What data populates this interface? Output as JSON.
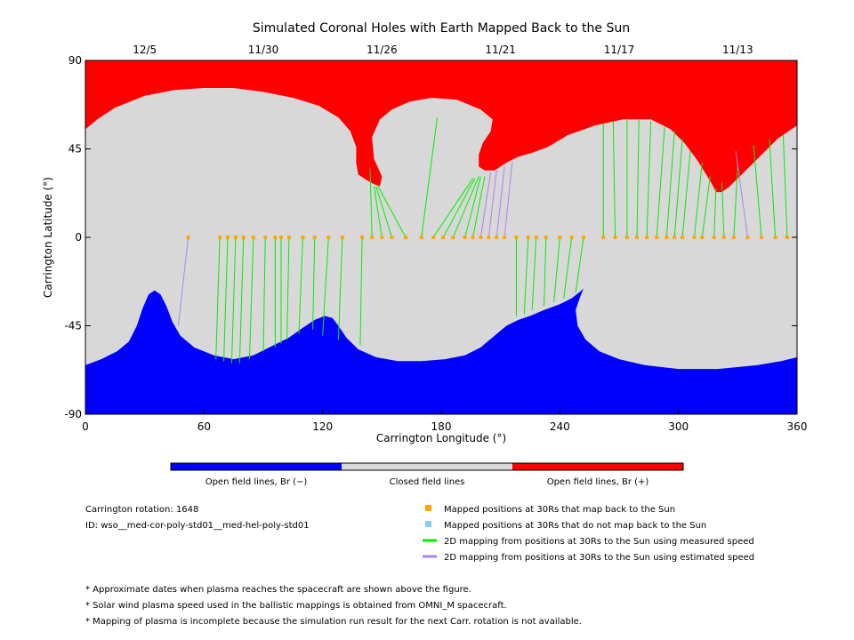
{
  "chart_data": {
    "type": "scatter",
    "title": "Simulated Coronal Holes with Earth Mapped Back to the Sun",
    "xlabel": "Carrington Longitude (°)",
    "ylabel": "Carrington Latitude (°)",
    "xlim": [
      0,
      360
    ],
    "ylim": [
      -90,
      90
    ],
    "x_ticks": [
      0,
      60,
      120,
      180,
      240,
      300,
      360
    ],
    "y_ticks": [
      -90,
      -45,
      0,
      45,
      90
    ],
    "date_ticks": [
      {
        "label": "12/5",
        "lon": 30
      },
      {
        "label": "11/30",
        "lon": 90
      },
      {
        "label": "11/26",
        "lon": 150
      },
      {
        "label": "11/21",
        "lon": 210
      },
      {
        "label": "11/17",
        "lon": 270
      },
      {
        "label": "11/13",
        "lon": 330
      }
    ],
    "colors": {
      "positive": "#ff0000",
      "closed": "#d8d8d8",
      "negative": "#0000ff",
      "measured": "#00ee00",
      "estimated": "#b080f0",
      "mapped_point": "#ffa500",
      "unmapped_point": "#87cefa"
    },
    "regions": {
      "positive_boundary": [
        [
          0,
          55
        ],
        [
          6,
          60
        ],
        [
          15,
          66
        ],
        [
          30,
          72
        ],
        [
          45,
          75
        ],
        [
          60,
          76
        ],
        [
          75,
          76
        ],
        [
          90,
          74
        ],
        [
          105,
          71
        ],
        [
          118,
          67
        ],
        [
          128,
          61
        ],
        [
          134,
          54
        ],
        [
          137,
          46
        ],
        [
          137,
          38
        ],
        [
          138,
          32
        ],
        [
          141,
          30
        ],
        [
          146,
          27
        ],
        [
          149,
          26
        ],
        [
          150,
          31
        ],
        [
          146,
          40
        ],
        [
          145,
          51
        ],
        [
          149,
          60
        ],
        [
          155,
          65
        ],
        [
          164,
          69
        ],
        [
          175,
          71
        ],
        [
          188,
          70
        ],
        [
          200,
          65
        ],
        [
          206,
          60
        ],
        [
          205,
          54
        ],
        [
          201,
          48
        ],
        [
          199,
          42
        ],
        [
          199,
          36
        ],
        [
          202,
          34
        ],
        [
          207,
          34
        ],
        [
          213,
          38
        ],
        [
          219,
          41
        ],
        [
          226,
          43
        ],
        [
          234,
          46
        ],
        [
          244,
          52
        ],
        [
          258,
          57
        ],
        [
          272,
          60
        ],
        [
          286,
          60
        ],
        [
          296,
          55
        ],
        [
          303,
          48
        ],
        [
          309,
          40
        ],
        [
          314,
          32
        ],
        [
          317,
          27
        ],
        [
          319,
          23
        ],
        [
          322,
          23
        ],
        [
          326,
          26
        ],
        [
          332,
          32
        ],
        [
          340,
          40
        ],
        [
          350,
          50
        ],
        [
          360,
          57
        ]
      ],
      "negative_boundary": [
        [
          0,
          -65
        ],
        [
          8,
          -62
        ],
        [
          16,
          -58
        ],
        [
          22,
          -53
        ],
        [
          26,
          -45
        ],
        [
          29,
          -36
        ],
        [
          32,
          -29
        ],
        [
          35,
          -27
        ],
        [
          38,
          -29
        ],
        [
          41,
          -35
        ],
        [
          44,
          -43
        ],
        [
          48,
          -50
        ],
        [
          55,
          -56
        ],
        [
          65,
          -60
        ],
        [
          75,
          -62
        ],
        [
          85,
          -60
        ],
        [
          95,
          -55
        ],
        [
          103,
          -51
        ],
        [
          110,
          -46
        ],
        [
          116,
          -42
        ],
        [
          121,
          -40
        ],
        [
          125,
          -41
        ],
        [
          128,
          -45
        ],
        [
          132,
          -51
        ],
        [
          138,
          -57
        ],
        [
          147,
          -61
        ],
        [
          158,
          -63
        ],
        [
          170,
          -63
        ],
        [
          182,
          -62
        ],
        [
          192,
          -60
        ],
        [
          200,
          -56
        ],
        [
          207,
          -50
        ],
        [
          213,
          -45
        ],
        [
          219,
          -42
        ],
        [
          225,
          -40
        ],
        [
          232,
          -37
        ],
        [
          240,
          -34
        ],
        [
          246,
          -31
        ],
        [
          251,
          -27
        ],
        [
          252,
          -26
        ],
        [
          250,
          -31
        ],
        [
          248,
          -37
        ],
        [
          249,
          -45
        ],
        [
          253,
          -52
        ],
        [
          260,
          -58
        ],
        [
          270,
          -62
        ],
        [
          283,
          -65
        ],
        [
          300,
          -67
        ],
        [
          320,
          -67
        ],
        [
          340,
          -65
        ],
        [
          352,
          -63
        ],
        [
          360,
          -61
        ]
      ]
    },
    "speed_source": "measured speed",
    "trajectories": [
      {
        "lon": 52,
        "lat": 0,
        "sun_lon": 47,
        "sun_lat": -45,
        "mapped": true,
        "speed": "estimated"
      },
      {
        "lon": 68,
        "lat": 0,
        "sun_lon": 66,
        "sun_lat": -62,
        "mapped": true,
        "speed": "measured"
      },
      {
        "lon": 72,
        "lat": 0,
        "sun_lon": 70,
        "sun_lat": -63,
        "mapped": true,
        "speed": "measured"
      },
      {
        "lon": 76,
        "lat": 0,
        "sun_lon": 74,
        "sun_lat": -64,
        "mapped": true,
        "speed": "measured"
      },
      {
        "lon": 80,
        "lat": 0,
        "sun_lon": 78,
        "sun_lat": -64,
        "mapped": true,
        "speed": "measured"
      },
      {
        "lon": 85,
        "lat": 0,
        "sun_lon": 83,
        "sun_lat": -62,
        "mapped": true,
        "speed": "measured"
      },
      {
        "lon": 91,
        "lat": 0,
        "sun_lon": 90,
        "sun_lat": -58,
        "mapped": true,
        "speed": "measured"
      },
      {
        "lon": 96,
        "lat": 0,
        "sun_lon": 96,
        "sun_lat": -56,
        "mapped": true,
        "speed": "measured"
      },
      {
        "lon": 99,
        "lat": 0,
        "sun_lon": 99,
        "sun_lat": -54,
        "mapped": true,
        "speed": "measured"
      },
      {
        "lon": 103,
        "lat": 0,
        "sun_lon": 102,
        "sun_lat": -52,
        "mapped": true,
        "speed": "measured"
      },
      {
        "lon": 110,
        "lat": 0,
        "sun_lon": 108,
        "sun_lat": -49,
        "mapped": true,
        "speed": "measured"
      },
      {
        "lon": 116,
        "lat": 0,
        "sun_lon": 115,
        "sun_lat": -47,
        "mapped": true,
        "speed": "measured"
      },
      {
        "lon": 123,
        "lat": 0,
        "sun_lon": 120,
        "sun_lat": -50,
        "mapped": true,
        "speed": "measured"
      },
      {
        "lon": 130,
        "lat": 0,
        "sun_lon": 128,
        "sun_lat": -52,
        "mapped": true,
        "speed": "measured"
      },
      {
        "lon": 140,
        "lat": 0,
        "sun_lon": 139,
        "sun_lat": -55,
        "mapped": true,
        "speed": "measured"
      },
      {
        "lon": 145,
        "lat": 0,
        "sun_lon": 144,
        "sun_lat": 35,
        "mapped": true,
        "speed": "measured"
      },
      {
        "lon": 150,
        "lat": 0,
        "sun_lon": 146,
        "sun_lat": 26,
        "mapped": true,
        "speed": "measured"
      },
      {
        "lon": 155,
        "lat": 0,
        "sun_lon": 147,
        "sun_lat": 26,
        "mapped": true,
        "speed": "measured"
      },
      {
        "lon": 162,
        "lat": 0,
        "sun_lon": 148,
        "sun_lat": 26,
        "mapped": true,
        "speed": "measured"
      },
      {
        "lon": 170,
        "lat": 0,
        "sun_lon": 178,
        "sun_lat": 61,
        "mapped": true,
        "speed": "measured"
      },
      {
        "lon": 176,
        "lat": 0,
        "sun_lon": 196,
        "sun_lat": 30,
        "mapped": true,
        "speed": "measured"
      },
      {
        "lon": 181,
        "lat": 0,
        "sun_lon": 197,
        "sun_lat": 30,
        "mapped": true,
        "speed": "measured"
      },
      {
        "lon": 186,
        "lat": 0,
        "sun_lon": 199,
        "sun_lat": 31,
        "mapped": true,
        "speed": "measured"
      },
      {
        "lon": 192,
        "lat": 0,
        "sun_lon": 200,
        "sun_lat": 31,
        "mapped": true,
        "speed": "measured"
      },
      {
        "lon": 196,
        "lat": 0,
        "sun_lon": 202,
        "sun_lat": 31,
        "mapped": true,
        "speed": "measured"
      },
      {
        "lon": 200,
        "lat": 0,
        "sun_lon": 205,
        "sun_lat": 33,
        "mapped": true,
        "speed": "estimated"
      },
      {
        "lon": 204,
        "lat": 0,
        "sun_lon": 208,
        "sun_lat": 34,
        "mapped": true,
        "speed": "estimated"
      },
      {
        "lon": 208,
        "lat": 0,
        "sun_lon": 212,
        "sun_lat": 36,
        "mapped": true,
        "speed": "estimated"
      },
      {
        "lon": 212,
        "lat": 0,
        "sun_lon": 216,
        "sun_lat": 39,
        "mapped": true,
        "speed": "estimated"
      },
      {
        "lon": 218,
        "lat": 0,
        "sun_lon": 218,
        "sun_lat": -40,
        "mapped": true,
        "speed": "measured"
      },
      {
        "lon": 224,
        "lat": 0,
        "sun_lon": 222,
        "sun_lat": -39,
        "mapped": true,
        "speed": "measured"
      },
      {
        "lon": 228,
        "lat": 0,
        "sun_lon": 226,
        "sun_lat": -37,
        "mapped": true,
        "speed": "measured"
      },
      {
        "lon": 233,
        "lat": 0,
        "sun_lon": 232,
        "sun_lat": -35,
        "mapped": true,
        "speed": "measured"
      },
      {
        "lon": 240,
        "lat": 0,
        "sun_lon": 237,
        "sun_lat": -33,
        "mapped": true,
        "speed": "measured"
      },
      {
        "lon": 246,
        "lat": 0,
        "sun_lon": 242,
        "sun_lat": -31,
        "mapped": true,
        "speed": "measured"
      },
      {
        "lon": 252,
        "lat": 0,
        "sun_lon": 248,
        "sun_lat": -28,
        "mapped": true,
        "speed": "measured"
      },
      {
        "lon": 262,
        "lat": 0,
        "sun_lon": 262,
        "sun_lat": 58,
        "mapped": true,
        "speed": "measured"
      },
      {
        "lon": 268,
        "lat": 0,
        "sun_lon": 267,
        "sun_lat": 59,
        "mapped": true,
        "speed": "measured"
      },
      {
        "lon": 274,
        "lat": 0,
        "sun_lon": 274,
        "sun_lat": 60,
        "mapped": true,
        "speed": "measured"
      },
      {
        "lon": 279,
        "lat": 0,
        "sun_lon": 280,
        "sun_lat": 60,
        "mapped": true,
        "speed": "measured"
      },
      {
        "lon": 284,
        "lat": 0,
        "sun_lon": 286,
        "sun_lat": 59,
        "mapped": true,
        "speed": "measured"
      },
      {
        "lon": 289,
        "lat": 0,
        "sun_lon": 293,
        "sun_lat": 56,
        "mapped": true,
        "speed": "measured"
      },
      {
        "lon": 294,
        "lat": 0,
        "sun_lon": 298,
        "sun_lat": 54,
        "mapped": true,
        "speed": "measured"
      },
      {
        "lon": 298,
        "lat": 0,
        "sun_lon": 302,
        "sun_lat": 50,
        "mapped": true,
        "speed": "measured"
      },
      {
        "lon": 302,
        "lat": 0,
        "sun_lon": 306,
        "sun_lat": 44,
        "mapped": true,
        "speed": "measured"
      },
      {
        "lon": 308,
        "lat": 0,
        "sun_lon": 312,
        "sun_lat": 38,
        "mapped": true,
        "speed": "measured"
      },
      {
        "lon": 312,
        "lat": 0,
        "sun_lon": 316,
        "sun_lat": 31,
        "mapped": true,
        "speed": "measured"
      },
      {
        "lon": 318,
        "lat": 0,
        "sun_lon": 319,
        "sun_lat": 25,
        "mapped": true,
        "speed": "measured"
      },
      {
        "lon": 323,
        "lat": 0,
        "sun_lon": 322,
        "sun_lat": 28,
        "mapped": true,
        "speed": "measured"
      },
      {
        "lon": 328,
        "lat": 0,
        "sun_lon": 330,
        "sun_lat": 37,
        "mapped": true,
        "speed": "measured"
      },
      {
        "lon": 335,
        "lat": 0,
        "sun_lon": 329,
        "sun_lat": 44,
        "mapped": true,
        "speed": "estimated"
      },
      {
        "lon": 342,
        "lat": 0,
        "sun_lon": 338,
        "sun_lat": 47,
        "mapped": true,
        "speed": "measured"
      },
      {
        "lon": 349,
        "lat": 0,
        "sun_lon": 346,
        "sun_lat": 50,
        "mapped": true,
        "speed": "measured"
      },
      {
        "lon": 355,
        "lat": 0,
        "sun_lon": 353,
        "sun_lat": 52,
        "mapped": true,
        "speed": "measured"
      }
    ]
  },
  "colorbar": {
    "labels": [
      "Open field lines, Br (−)",
      "Closed field lines",
      "Open field lines, Br (+)"
    ],
    "colors": [
      "#0000ff",
      "#d8d8d8",
      "#ff0000"
    ]
  },
  "info": {
    "rotation": "Carrington rotation: 1648",
    "id": "ID: wso__med-cor-poly-std01__med-hel-poly-std01"
  },
  "legend": [
    {
      "kind": "square",
      "color": "#ffa500",
      "label": "Mapped positions at 30Rs that map back to the Sun"
    },
    {
      "kind": "square",
      "color": "#87cefa",
      "label": "Mapped positions at 30Rs that do not map back to the Sun"
    },
    {
      "kind": "line",
      "color": "#00ee00",
      "label": "2D mapping from positions at 30Rs to the Sun using measured speed"
    },
    {
      "kind": "line",
      "color": "#b080f0",
      "label": "2D mapping from positions at 30Rs to the Sun using estimated speed"
    }
  ],
  "notes": [
    "* Approximate dates when plasma reaches the spacecraft are shown above the figure.",
    "* Solar wind plasma speed used in the ballistic mappings is obtained from OMNI_M spacecraft.",
    "* Mapping of plasma is incomplete because the simulation run result for the next Carr. rotation is not available."
  ]
}
